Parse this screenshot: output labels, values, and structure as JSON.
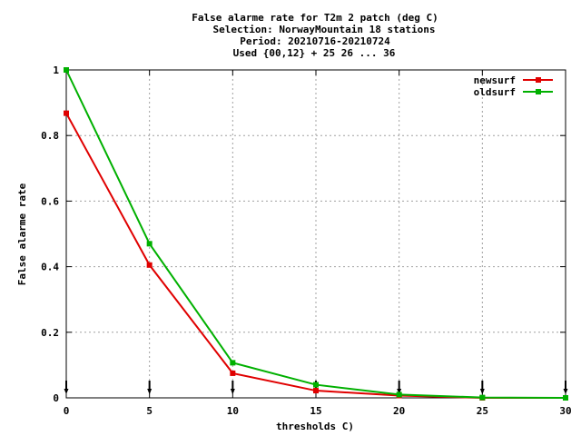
{
  "chart_data": {
    "type": "line",
    "title_lines": [
      "False alarme rate  for T2m 2 patch (deg C)",
      "Selection: NorwayMountain     18 stations",
      "Period: 20210716-20210724",
      "Used {00,12} + 25 26 ... 36"
    ],
    "xlabel": "thresholds C)",
    "ylabel": "False alarme rate",
    "xlim": [
      0,
      30
    ],
    "ylim": [
      0,
      1
    ],
    "xticks": [
      0,
      5,
      10,
      15,
      20,
      25,
      30
    ],
    "yticks": [
      0,
      0.2,
      0.4,
      0.6,
      0.8,
      1
    ],
    "ytick_labels": [
      "0",
      "0.2",
      "0.4",
      "0.6",
      "0.8",
      "1"
    ],
    "grid": true,
    "legend_position": "top-right",
    "series": [
      {
        "name": "newsurf",
        "color": "#e00000",
        "x": [
          0,
          5,
          10,
          15,
          20,
          25,
          30
        ],
        "y": [
          0.868,
          0.405,
          0.075,
          0.022,
          0.007,
          0.0,
          0.0
        ]
      },
      {
        "name": "oldsurf",
        "color": "#00b000",
        "x": [
          0,
          5,
          10,
          15,
          20,
          25,
          30
        ],
        "y": [
          1.0,
          0.47,
          0.107,
          0.04,
          0.01,
          0.001,
          0.0
        ]
      }
    ],
    "marker_arrows_x": [
      0,
      5,
      10,
      15,
      20,
      25,
      30
    ]
  }
}
